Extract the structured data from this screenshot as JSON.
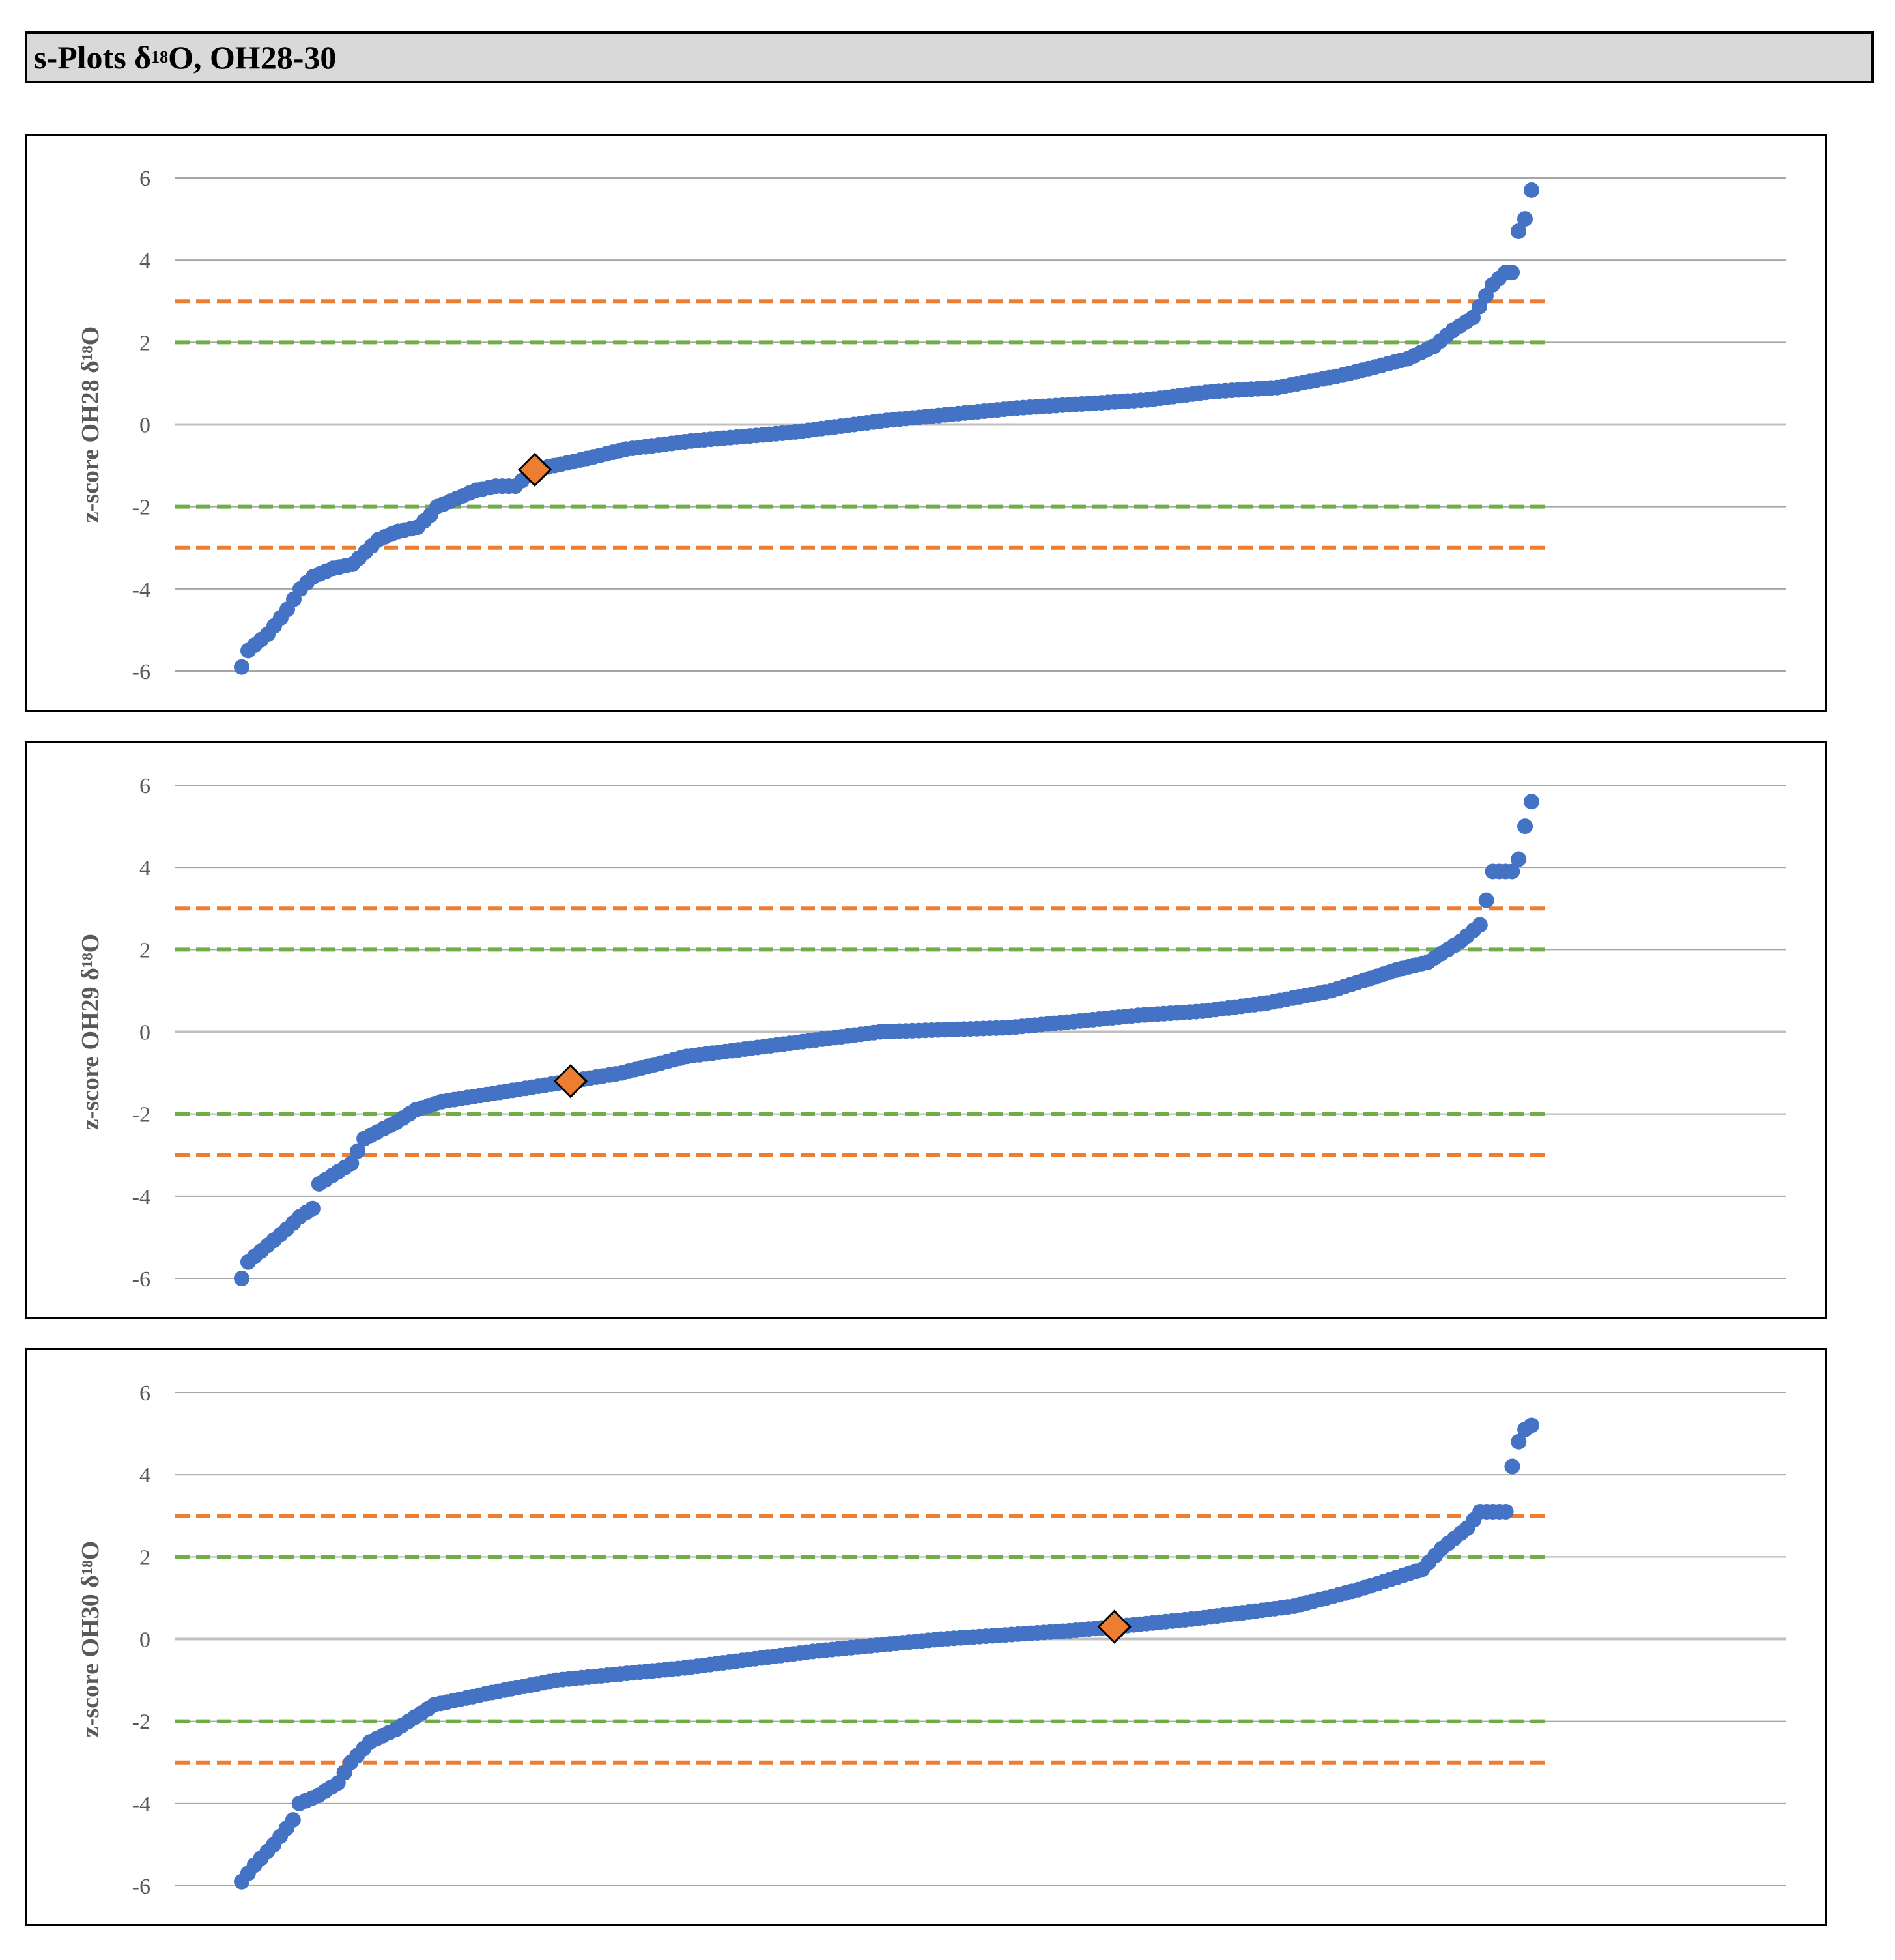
{
  "page_title": {
    "prefix": "s-Plots δ",
    "sup": "18",
    "suffix": "O, OH28-30"
  },
  "colors": {
    "points": "#4472c4",
    "marker": "#ed7d31",
    "line_orange": "#ed7d31",
    "line_green": "#70ad47",
    "grid": "#a6a6a6",
    "zero": "#bfbfbf"
  },
  "chart_data": [
    {
      "type": "scatter",
      "ylabel": "z-score OH28 δ¹⁸O",
      "ylim": [
        -6,
        6
      ],
      "yticks": [
        "6",
        "4",
        "2",
        "0",
        "-2",
        "-4",
        "-6"
      ],
      "reference_lines": [
        {
          "y": 3,
          "color": "orange",
          "style": "dashed"
        },
        {
          "y": 2,
          "color": "green",
          "style": "dashed"
        },
        {
          "y": -2,
          "color": "green",
          "style": "dashed"
        },
        {
          "y": -3,
          "color": "orange",
          "style": "dashed"
        }
      ],
      "n_points": 196,
      "highlight": {
        "rank": 46,
        "y": -1.1
      },
      "curve": [
        [
          1,
          -5.9
        ],
        [
          2,
          -5.5
        ],
        [
          5,
          -5.1
        ],
        [
          8,
          -4.5
        ],
        [
          10,
          -4.0
        ],
        [
          12,
          -3.7
        ],
        [
          15,
          -3.5
        ],
        [
          18,
          -3.4
        ],
        [
          20,
          -3.1
        ],
        [
          22,
          -2.8
        ],
        [
          25,
          -2.6
        ],
        [
          28,
          -2.5
        ],
        [
          30,
          -2.2
        ],
        [
          31,
          -2.0
        ],
        [
          34,
          -1.8
        ],
        [
          37,
          -1.6
        ],
        [
          40,
          -1.5
        ],
        [
          43,
          -1.5
        ],
        [
          46,
          -1.1
        ],
        [
          52,
          -0.9
        ],
        [
          60,
          -0.6
        ],
        [
          70,
          -0.4
        ],
        [
          85,
          -0.2
        ],
        [
          100,
          0.1
        ],
        [
          120,
          0.4
        ],
        [
          140,
          0.6
        ],
        [
          150,
          0.8
        ],
        [
          160,
          0.9
        ],
        [
          170,
          1.2
        ],
        [
          180,
          1.6
        ],
        [
          184,
          1.9
        ],
        [
          187,
          2.3
        ],
        [
          190,
          2.6
        ],
        [
          193,
          3.4
        ],
        [
          195,
          3.7
        ]
      ],
      "outliers": [
        4.7,
        5.0,
        5.7
      ]
    },
    {
      "type": "scatter",
      "ylabel": "z-score OH29 δ¹⁸O",
      "ylim": [
        -6,
        6
      ],
      "yticks": [
        "6",
        "4",
        "2",
        "0",
        "-2",
        "-4",
        "-6"
      ],
      "reference_lines": [
        {
          "y": 3,
          "color": "orange",
          "style": "dashed"
        },
        {
          "y": 2,
          "color": "green",
          "style": "dashed"
        },
        {
          "y": -2,
          "color": "green",
          "style": "dashed"
        },
        {
          "y": -3,
          "color": "orange",
          "style": "dashed"
        }
      ],
      "n_points": 198,
      "highlight": {
        "rank": 52,
        "y": -1.2
      },
      "curve": [
        [
          1,
          -6.0
        ],
        [
          2,
          -5.6
        ],
        [
          5,
          -5.2
        ],
        [
          8,
          -4.8
        ],
        [
          10,
          -4.5
        ],
        [
          12,
          -4.3
        ],
        [
          13,
          -3.7
        ],
        [
          16,
          -3.4
        ],
        [
          18,
          -3.2
        ],
        [
          20,
          -2.6
        ],
        [
          25,
          -2.2
        ],
        [
          28,
          -1.9
        ],
        [
          32,
          -1.7
        ],
        [
          40,
          -1.5
        ],
        [
          52,
          -1.2
        ],
        [
          60,
          -1.0
        ],
        [
          70,
          -0.6
        ],
        [
          80,
          -0.4
        ],
        [
          100,
          0.0
        ],
        [
          120,
          0.1
        ],
        [
          140,
          0.4
        ],
        [
          150,
          0.5
        ],
        [
          160,
          0.7
        ],
        [
          170,
          1.0
        ],
        [
          180,
          1.5
        ],
        [
          185,
          1.7
        ],
        [
          190,
          2.2
        ],
        [
          193,
          2.6
        ],
        [
          194,
          3.2
        ],
        [
          195,
          3.9
        ]
      ],
      "outliers": [
        4.2,
        5.0,
        5.6
      ]
    },
    {
      "type": "scatter",
      "ylabel": "z-score OH30 δ¹⁸O",
      "ylim": [
        -6,
        6
      ],
      "yticks": [
        "6",
        "4",
        "2",
        "0",
        "-2",
        "-4",
        "-6"
      ],
      "reference_lines": [
        {
          "y": 3,
          "color": "orange",
          "style": "dashed"
        },
        {
          "y": 2,
          "color": "green",
          "style": "dashed"
        },
        {
          "y": -2,
          "color": "green",
          "style": "dashed"
        },
        {
          "y": -3,
          "color": "orange",
          "style": "dashed"
        }
      ],
      "n_points": 198,
      "highlight": {
        "rank": 137,
        "y": 0.3
      },
      "curve": [
        [
          1,
          -5.9
        ],
        [
          3,
          -5.5
        ],
        [
          6,
          -5.0
        ],
        [
          9,
          -4.4
        ],
        [
          10,
          -4.0
        ],
        [
          13,
          -3.8
        ],
        [
          16,
          -3.5
        ],
        [
          18,
          -3.0
        ],
        [
          21,
          -2.5
        ],
        [
          25,
          -2.2
        ],
        [
          28,
          -1.9
        ],
        [
          31,
          -1.6
        ],
        [
          40,
          -1.3
        ],
        [
          50,
          -1.0
        ],
        [
          70,
          -0.7
        ],
        [
          90,
          -0.3
        ],
        [
          110,
          0.0
        ],
        [
          130,
          0.2
        ],
        [
          137,
          0.3
        ],
        [
          150,
          0.5
        ],
        [
          165,
          0.8
        ],
        [
          175,
          1.2
        ],
        [
          185,
          1.7
        ],
        [
          188,
          2.2
        ],
        [
          192,
          2.7
        ],
        [
          194,
          3.1
        ]
      ],
      "outliers": [
        4.2,
        4.8,
        5.1,
        5.2
      ]
    }
  ]
}
